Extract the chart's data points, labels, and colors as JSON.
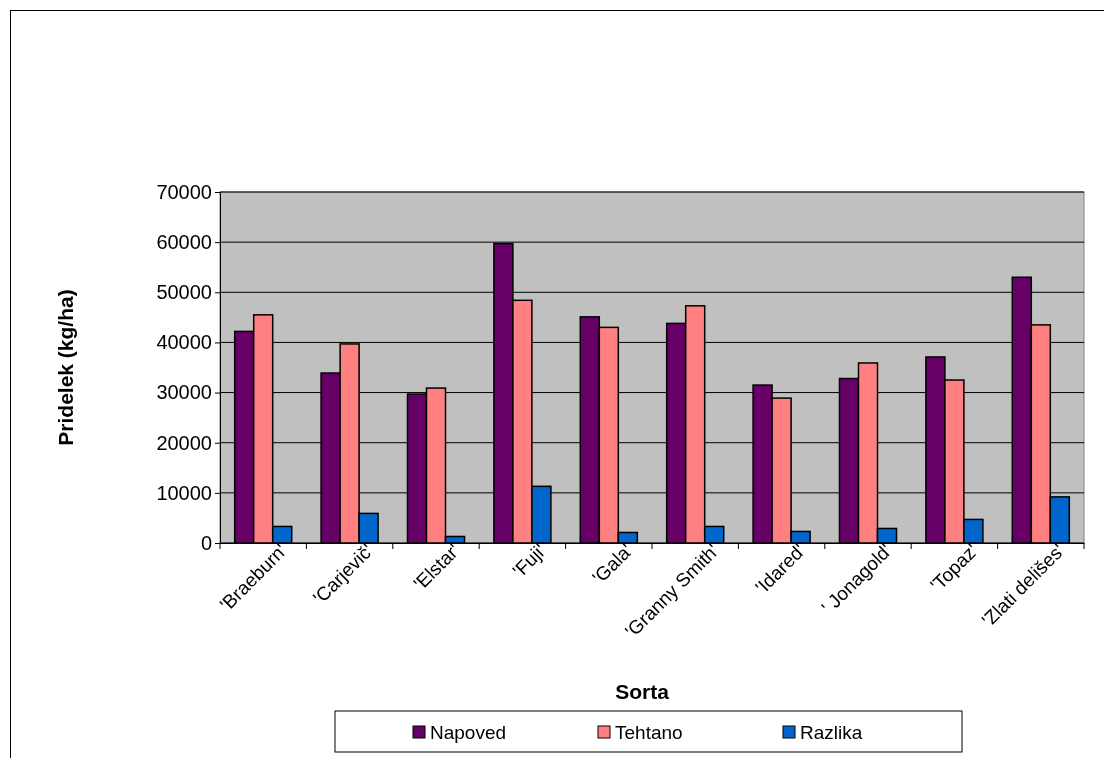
{
  "chart_data": {
    "type": "bar",
    "xlabel": "Sorta",
    "ylabel": "Pridelek (kg/ha)",
    "categories": [
      "'Braeburn'",
      "'Carjevič'",
      "'Elstar'",
      "'Fuji'",
      "'Gala'",
      "'Granny Smith'",
      "'Idared'",
      "' Jonagold'",
      "'Topaz'",
      "'Zlati delišes'"
    ],
    "series": [
      {
        "name": "Napoved",
        "color": "#660066",
        "values": [
          42200,
          33900,
          29700,
          59700,
          45100,
          43800,
          31500,
          32800,
          37100,
          53000
        ]
      },
      {
        "name": "Tehtano",
        "color": "#ff8080",
        "values": [
          45500,
          39700,
          30900,
          48400,
          43000,
          47300,
          28900,
          35900,
          32500,
          43500
        ]
      },
      {
        "name": "Razlika",
        "color": "#0066cc",
        "values": [
          3300,
          5900,
          1300,
          11300,
          2100,
          3300,
          2300,
          2900,
          4700,
          9200
        ]
      }
    ],
    "ylim": [
      0,
      70000
    ],
    "yticks": [
      0,
      10000,
      20000,
      30000,
      40000,
      50000,
      60000,
      70000
    ],
    "grid": "y",
    "legend": "bottom"
  }
}
